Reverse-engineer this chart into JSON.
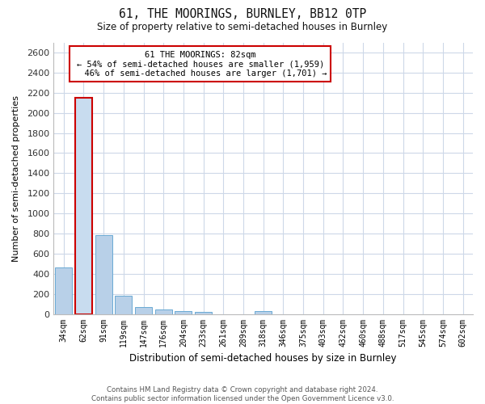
{
  "title": "61, THE MOORINGS, BURNLEY, BB12 0TP",
  "subtitle": "Size of property relative to semi-detached houses in Burnley",
  "xlabel": "Distribution of semi-detached houses by size in Burnley",
  "ylabel": "Number of semi-detached properties",
  "categories": [
    "34sqm",
    "62sqm",
    "91sqm",
    "119sqm",
    "147sqm",
    "176sqm",
    "204sqm",
    "233sqm",
    "261sqm",
    "289sqm",
    "318sqm",
    "346sqm",
    "375sqm",
    "403sqm",
    "432sqm",
    "460sqm",
    "488sqm",
    "517sqm",
    "545sqm",
    "574sqm",
    "602sqm"
  ],
  "values": [
    460,
    2150,
    780,
    185,
    65,
    48,
    30,
    20,
    0,
    0,
    25,
    0,
    0,
    0,
    0,
    0,
    0,
    0,
    0,
    0,
    0
  ],
  "bar_color": "#b8d0e8",
  "bar_edge_color": "#6aaad4",
  "highlight_bar_index": 1,
  "highlight_color": "#c8dcef",
  "highlight_edge_color": "#cc0000",
  "property_label": "61 THE MOORINGS: 82sqm",
  "pct_smaller": 54,
  "n_smaller": 1959,
  "pct_larger": 46,
  "n_larger": 1701,
  "ylim": [
    0,
    2700
  ],
  "yticks": [
    0,
    200,
    400,
    600,
    800,
    1000,
    1200,
    1400,
    1600,
    1800,
    2000,
    2200,
    2400,
    2600
  ],
  "footer1": "Contains HM Land Registry data © Crown copyright and database right 2024.",
  "footer2": "Contains public sector information licensed under the Open Government Licence v3.0.",
  "background_color": "#ffffff",
  "grid_color": "#cdd8e8"
}
